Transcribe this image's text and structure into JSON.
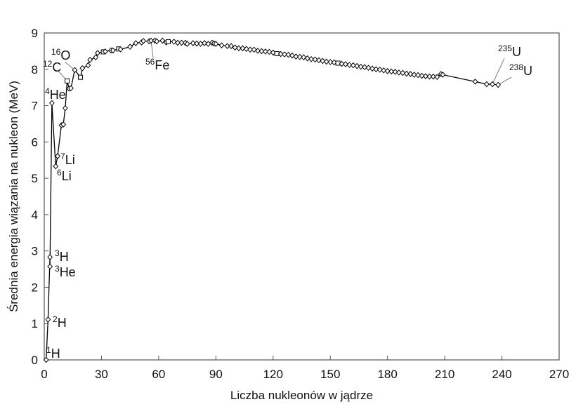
{
  "chart_data": {
    "type": "line",
    "xlabel": "Liczba nukleonów w jądrze",
    "ylabel": "Średnia energia wiązania na nukleon (MeV)",
    "xlim": [
      0,
      270
    ],
    "ylim": [
      0,
      9
    ],
    "x_ticks": [
      0,
      30,
      60,
      90,
      120,
      150,
      180,
      210,
      240,
      270
    ],
    "y_ticks": [
      0,
      1,
      2,
      3,
      4,
      5,
      6,
      7,
      8,
      9
    ],
    "grid": false,
    "series": [
      {
        "x": [
          1,
          2,
          3,
          3,
          4,
          6,
          7,
          9,
          10,
          11,
          12,
          13,
          14,
          16,
          19,
          20,
          23,
          24,
          27,
          28,
          31,
          32,
          35,
          36,
          39,
          40,
          45,
          48,
          51,
          52,
          55,
          56,
          58,
          59,
          62,
          64,
          65,
          68,
          70,
          72,
          74,
          75,
          78,
          80,
          82,
          84,
          86,
          88,
          89,
          90,
          93,
          96,
          98,
          100,
          102,
          104,
          106,
          108,
          110,
          112,
          114,
          116,
          118,
          120,
          122,
          124,
          126,
          128,
          130,
          132,
          134,
          136,
          138,
          140,
          142,
          144,
          146,
          148,
          150,
          152,
          154,
          156,
          158,
          160,
          162,
          164,
          166,
          168,
          170,
          172,
          174,
          176,
          178,
          180,
          182,
          184,
          186,
          188,
          190,
          192,
          194,
          196,
          198,
          200,
          202,
          204,
          206,
          208,
          209,
          226,
          232,
          235,
          238
        ],
        "y": [
          0,
          1.11,
          2.83,
          2.57,
          7.07,
          5.33,
          5.61,
          6.46,
          6.48,
          6.93,
          7.68,
          7.47,
          7.48,
          7.98,
          7.78,
          8.03,
          8.11,
          8.26,
          8.33,
          8.45,
          8.48,
          8.49,
          8.52,
          8.52,
          8.56,
          8.55,
          8.62,
          8.72,
          8.74,
          8.78,
          8.77,
          8.79,
          8.79,
          8.77,
          8.79,
          8.74,
          8.76,
          8.76,
          8.73,
          8.73,
          8.73,
          8.7,
          8.72,
          8.71,
          8.7,
          8.72,
          8.7,
          8.73,
          8.71,
          8.7,
          8.66,
          8.64,
          8.64,
          8.6,
          8.58,
          8.58,
          8.56,
          8.54,
          8.54,
          8.51,
          8.5,
          8.49,
          8.48,
          8.46,
          8.43,
          8.42,
          8.41,
          8.4,
          8.38,
          8.35,
          8.34,
          8.33,
          8.3,
          8.28,
          8.27,
          8.25,
          8.23,
          8.21,
          8.2,
          8.19,
          8.17,
          8.15,
          8.14,
          8.12,
          8.11,
          8.09,
          8.07,
          8.06,
          8.04,
          8.02,
          8.0,
          7.99,
          7.97,
          7.95,
          7.94,
          7.93,
          7.91,
          7.9,
          7.88,
          7.87,
          7.85,
          7.84,
          7.82,
          7.81,
          7.8,
          7.8,
          7.79,
          7.87,
          7.85,
          7.66,
          7.59,
          7.59,
          7.57
        ]
      }
    ],
    "annotations": [
      {
        "mass": "1",
        "symbol": "H",
        "x": 1,
        "y": 0
      },
      {
        "mass": "2",
        "symbol": "H",
        "x": 2,
        "y": 1.11
      },
      {
        "mass": "3",
        "symbol": "H",
        "x": 3,
        "y": 2.83
      },
      {
        "mass": "3",
        "symbol": "He",
        "x": 3,
        "y": 2.57
      },
      {
        "mass": "4",
        "symbol": "He",
        "x": 4,
        "y": 7.07
      },
      {
        "mass": "6",
        "symbol": "Li",
        "x": 6,
        "y": 5.33
      },
      {
        "mass": "7",
        "symbol": "Li",
        "x": 7,
        "y": 5.61
      },
      {
        "mass": "12",
        "symbol": "C",
        "x": 12,
        "y": 7.68
      },
      {
        "mass": "16",
        "symbol": "O",
        "x": 16,
        "y": 7.98
      },
      {
        "mass": "56",
        "symbol": "Fe",
        "x": 56,
        "y": 8.79
      },
      {
        "mass": "235",
        "symbol": "U",
        "x": 235,
        "y": 7.59
      },
      {
        "mass": "238",
        "symbol": "U",
        "x": 238,
        "y": 7.57
      }
    ],
    "colors": {
      "line": "#000000",
      "marker_fill": "#ffffff",
      "text": "#111111",
      "axis": "#555555"
    }
  }
}
